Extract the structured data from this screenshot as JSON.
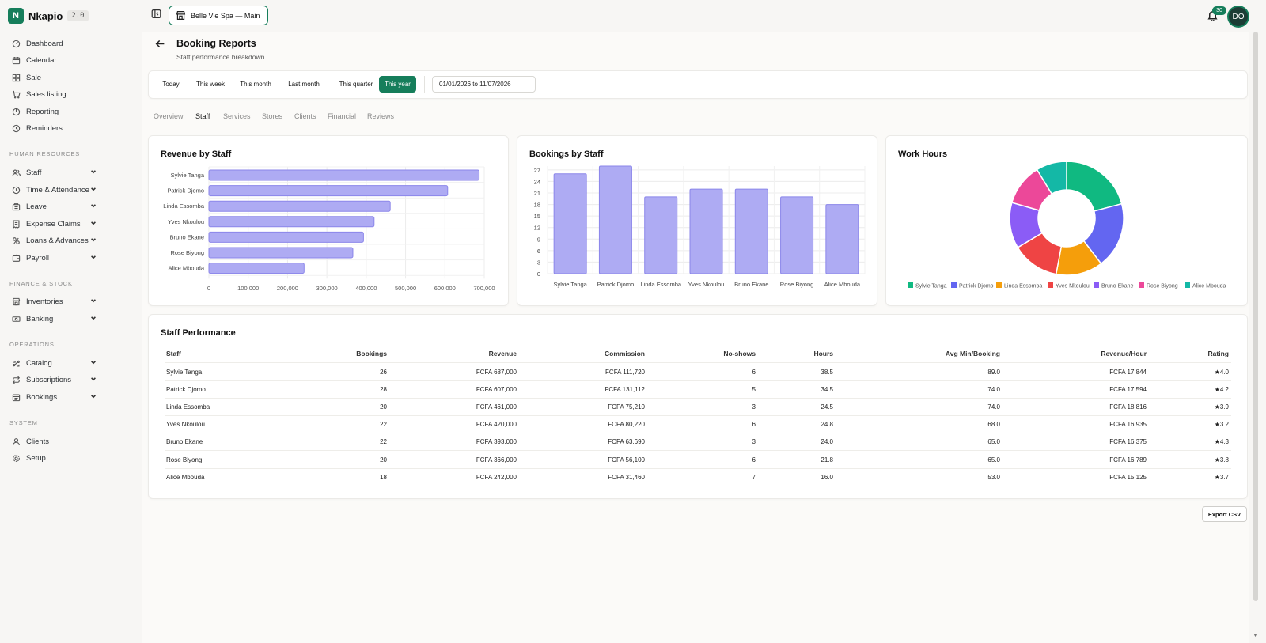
{
  "app": {
    "name": "Nkapio",
    "version": "2.0"
  },
  "store_selector": {
    "label": "Belle Vie Spa — Main"
  },
  "notifications": {
    "count": "30"
  },
  "user": {
    "initials": "DO"
  },
  "sidebar": {
    "top_items": [
      {
        "label": "Dashboard",
        "icon": "dashboard-icon"
      },
      {
        "label": "Calendar",
        "icon": "calendar-icon"
      },
      {
        "label": "Sale",
        "icon": "grid-icon"
      },
      {
        "label": "Sales listing",
        "icon": "cart-icon"
      },
      {
        "label": "Reporting",
        "icon": "chart-icon"
      },
      {
        "label": "Reminders",
        "icon": "reminder-icon"
      }
    ],
    "sections": [
      {
        "label": "HUMAN RESOURCES",
        "items": [
          {
            "label": "Staff",
            "icon": "users-icon"
          },
          {
            "label": "Time & Attendance",
            "icon": "clock-icon"
          },
          {
            "label": "Leave",
            "icon": "leave-icon"
          },
          {
            "label": "Expense Claims",
            "icon": "receipt-icon"
          },
          {
            "label": "Loans & Advances",
            "icon": "loan-icon"
          },
          {
            "label": "Payroll",
            "icon": "wallet-icon"
          }
        ]
      },
      {
        "label": "FINANCE & STOCK",
        "items": [
          {
            "label": "Inventories",
            "icon": "inventory-icon"
          },
          {
            "label": "Banking",
            "icon": "bank-icon"
          }
        ]
      },
      {
        "label": "OPERATIONS",
        "items": [
          {
            "label": "Catalog",
            "icon": "catalog-icon"
          },
          {
            "label": "Subscriptions",
            "icon": "repeat-icon"
          },
          {
            "label": "Bookings",
            "icon": "booking-icon"
          }
        ]
      },
      {
        "label": "SYSTEM",
        "items": [
          {
            "label": "Clients",
            "icon": "user-icon"
          },
          {
            "label": "Setup",
            "icon": "gear-icon"
          }
        ]
      }
    ]
  },
  "page": {
    "title": "Booking Reports",
    "subtitle": "Staff performance breakdown"
  },
  "filters": {
    "ranges": [
      "Today",
      "This week",
      "This month",
      "Last month",
      "This quarter",
      "This year"
    ],
    "active_range": "This year",
    "date_range": "01/01/2026 to 11/07/2026"
  },
  "tabs": [
    "Overview",
    "Staff",
    "Services",
    "Stores",
    "Clients",
    "Financial",
    "Reviews"
  ],
  "active_tab": "Staff",
  "colors": {
    "brand": "#167e5b",
    "bar_fill": "#aeabf3",
    "bar_stroke": "#8b86ea",
    "pie": [
      "#10b981",
      "#6366f1",
      "#f59e0b",
      "#ef4444",
      "#8b5cf6",
      "#ec4899",
      "#14b8a6"
    ]
  },
  "chart_data": [
    {
      "type": "bar",
      "orientation": "horizontal",
      "title": "Revenue by Staff",
      "categories": [
        "Sylvie Tanga",
        "Patrick Djomo",
        "Linda Essomba",
        "Yves Nkoulou",
        "Bruno Ekane",
        "Rose Biyong",
        "Alice Mbouda"
      ],
      "values": [
        687000,
        607000,
        461000,
        420000,
        393000,
        366000,
        242000
      ],
      "xlim": [
        0,
        700000
      ],
      "xticks": [
        "0",
        "100,000",
        "200,000",
        "300,000",
        "400,000",
        "500,000",
        "600,000",
        "700,000"
      ],
      "grid": true
    },
    {
      "type": "bar",
      "title": "Bookings by Staff",
      "categories": [
        "Sylvie Tanga",
        "Patrick Djomo",
        "Linda Essomba",
        "Yves Nkoulou",
        "Bruno Ekane",
        "Rose Biyong",
        "Alice Mbouda"
      ],
      "values": [
        26,
        28,
        20,
        22,
        22,
        20,
        18
      ],
      "ylim": [
        0,
        28
      ],
      "yticks": [
        "0",
        "3",
        "6",
        "9",
        "12",
        "15",
        "18",
        "21",
        "24",
        "27"
      ],
      "grid": true
    },
    {
      "type": "pie",
      "donut": true,
      "title": "Work Hours",
      "labels": [
        "Sylvie Tanga",
        "Patrick Djomo",
        "Linda Essomba",
        "Yves Nkoulou",
        "Bruno Ekane",
        "Rose Biyong",
        "Alice Mbouda"
      ],
      "values": [
        38.5,
        34.5,
        24.5,
        24.8,
        24.0,
        21.8,
        16.0
      ],
      "legend": "bottom"
    }
  ],
  "performance": {
    "title": "Staff Performance",
    "columns": [
      "Staff",
      "Bookings",
      "Revenue",
      "Commission",
      "No-shows",
      "Hours",
      "Avg Min/Booking",
      "Revenue/Hour",
      "Rating"
    ],
    "rows": [
      [
        "Sylvie Tanga",
        "26",
        "FCFA 687,000",
        "FCFA 111,720",
        "6",
        "38.5",
        "89.0",
        "FCFA 17,844",
        "★4.0"
      ],
      [
        "Patrick Djomo",
        "28",
        "FCFA 607,000",
        "FCFA 131,112",
        "5",
        "34.5",
        "74.0",
        "FCFA 17,594",
        "★4.2"
      ],
      [
        "Linda Essomba",
        "20",
        "FCFA 461,000",
        "FCFA 75,210",
        "3",
        "24.5",
        "74.0",
        "FCFA 18,816",
        "★3.9"
      ],
      [
        "Yves Nkoulou",
        "22",
        "FCFA 420,000",
        "FCFA 80,220",
        "6",
        "24.8",
        "68.0",
        "FCFA 16,935",
        "★3.2"
      ],
      [
        "Bruno Ekane",
        "22",
        "FCFA 393,000",
        "FCFA 63,690",
        "3",
        "24.0",
        "65.0",
        "FCFA 16,375",
        "★4.3"
      ],
      [
        "Rose Biyong",
        "20",
        "FCFA 366,000",
        "FCFA 56,100",
        "6",
        "21.8",
        "65.0",
        "FCFA 16,789",
        "★3.8"
      ],
      [
        "Alice Mbouda",
        "18",
        "FCFA 242,000",
        "FCFA 31,460",
        "7",
        "16.0",
        "53.0",
        "FCFA 15,125",
        "★3.7"
      ]
    ]
  },
  "export": {
    "label": "Export CSV"
  }
}
